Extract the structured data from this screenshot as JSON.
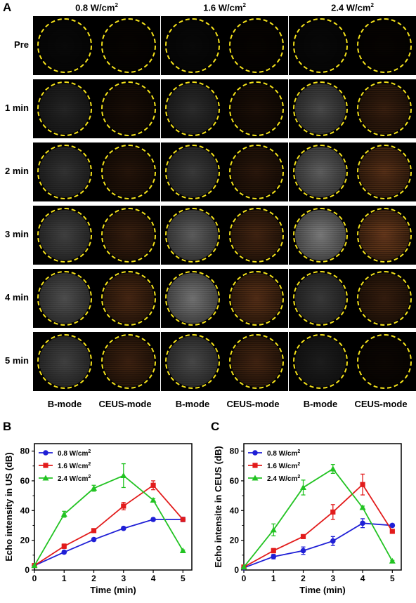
{
  "panels": {
    "a": "A",
    "b": "B",
    "c": "C"
  },
  "grid": {
    "column_headers": [
      {
        "main": "0.8 W/cm",
        "sup": "2"
      },
      {
        "main": "1.6 W/cm",
        "sup": "2"
      },
      {
        "main": "2.4 W/cm",
        "sup": "2"
      }
    ],
    "row_labels": [
      "Pre",
      "1 min",
      "2 min",
      "3 min",
      "4 min",
      "5 min"
    ],
    "mode_labels": [
      "B-mode",
      "CEUS-mode",
      "B-mode",
      "CEUS-mode",
      "B-mode",
      "CEUS-mode"
    ],
    "circle_color": "#f5e21a",
    "cell_intensity": [
      [
        0.05,
        0.02,
        0.06,
        0.03,
        0.05,
        0.02
      ],
      [
        0.25,
        0.2,
        0.3,
        0.22,
        0.5,
        0.45
      ],
      [
        0.35,
        0.3,
        0.4,
        0.35,
        0.65,
        0.7
      ],
      [
        0.45,
        0.45,
        0.65,
        0.55,
        0.85,
        0.85
      ],
      [
        0.55,
        0.6,
        0.8,
        0.7,
        0.4,
        0.45
      ],
      [
        0.45,
        0.5,
        0.5,
        0.55,
        0.2,
        0.1
      ]
    ]
  },
  "chart_data": [
    {
      "type": "line",
      "panel": "B",
      "xlabel": "Time (min)",
      "ylabel": "Echo intensity in US (dB)",
      "x": [
        0,
        1,
        2,
        3,
        4,
        5
      ],
      "xlim": [
        0,
        5.3
      ],
      "ylim": [
        0,
        85
      ],
      "xticks": [
        0,
        1,
        2,
        3,
        4,
        5
      ],
      "yticks": [
        0,
        20,
        40,
        60,
        80
      ],
      "legend_position": "top-left",
      "series": [
        {
          "name": "0.8 W/cm",
          "name_sup": "2",
          "color": "#1f1fd6",
          "marker": "circle",
          "values": [
            3,
            12,
            20.5,
            28,
            34,
            34
          ],
          "errors": [
            0,
            1,
            1,
            1,
            1,
            1.5
          ]
        },
        {
          "name": "1.6 W/cm",
          "name_sup": "2",
          "color": "#e21b1b",
          "marker": "square",
          "values": [
            3,
            16,
            26.5,
            43,
            57,
            34
          ],
          "errors": [
            0,
            1.5,
            1,
            2.5,
            3,
            1
          ]
        },
        {
          "name": "2.4 W/cm",
          "name_sup": "2",
          "color": "#22c322",
          "marker": "triangle",
          "values": [
            3,
            37.5,
            55,
            63.5,
            47,
            13
          ],
          "errors": [
            0,
            2,
            2,
            8,
            1,
            0.5
          ]
        }
      ]
    },
    {
      "type": "line",
      "panel": "C",
      "xlabel": "Time (min)",
      "ylabel": "Echo intensite in CEUS (dB)",
      "x": [
        0,
        1,
        2,
        3,
        4,
        5
      ],
      "xlim": [
        0,
        5.3
      ],
      "ylim": [
        0,
        85
      ],
      "xticks": [
        0,
        1,
        2,
        3,
        4,
        5
      ],
      "yticks": [
        0,
        20,
        40,
        60,
        80
      ],
      "legend_position": "top-left",
      "series": [
        {
          "name": "0.8 W/cm",
          "name_sup": "2",
          "color": "#1f1fd6",
          "marker": "circle",
          "values": [
            1.5,
            9,
            13,
            19.5,
            31.5,
            30
          ],
          "errors": [
            0,
            1.5,
            2.5,
            3,
            3,
            1
          ]
        },
        {
          "name": "1.6 W/cm",
          "name_sup": "2",
          "color": "#e21b1b",
          "marker": "square",
          "values": [
            2,
            13,
            22.5,
            39,
            57.5,
            26
          ],
          "errors": [
            0,
            1.5,
            1,
            5,
            7,
            1
          ]
        },
        {
          "name": "2.4 W/cm",
          "name_sup": "2",
          "color": "#22c322",
          "marker": "triangle",
          "values": [
            2,
            27,
            55.5,
            68,
            42,
            6
          ],
          "errors": [
            0,
            4,
            5,
            3,
            1,
            0.5
          ]
        }
      ]
    }
  ]
}
